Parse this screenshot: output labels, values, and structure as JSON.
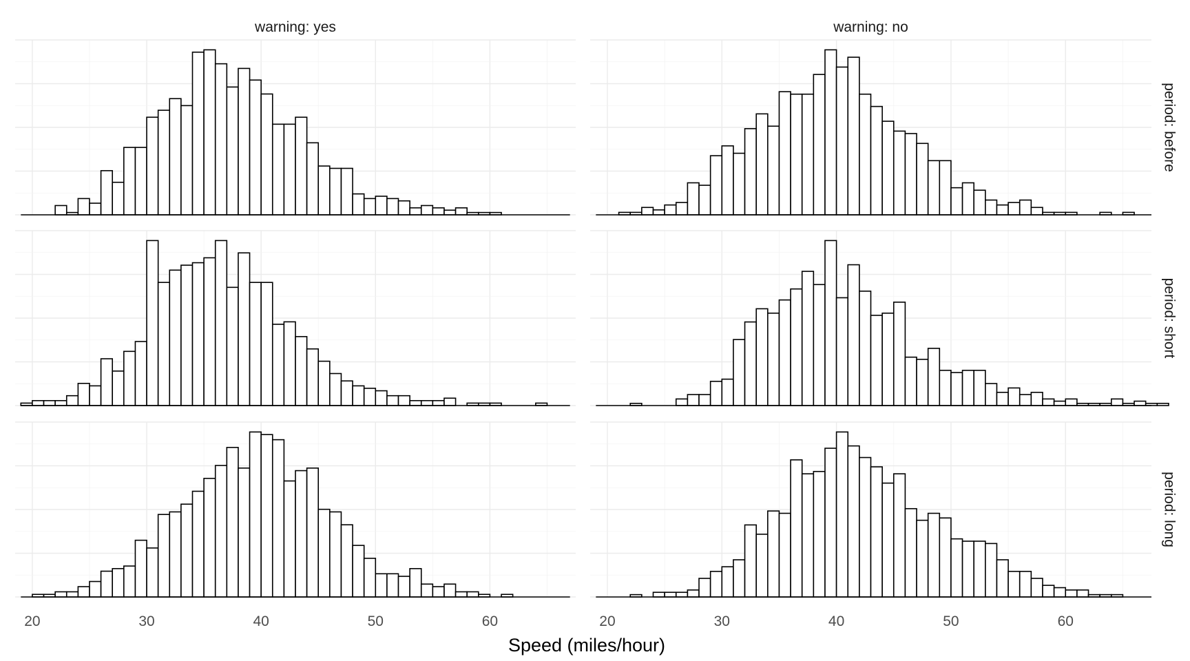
{
  "chart_data": {
    "type": "bar",
    "subtype": "histogram-facet-grid",
    "xlabel": "Speed (miles/hour)",
    "ylabel": "",
    "xlim": [
      18.5,
      67.5
    ],
    "x_ticks": [
      20,
      30,
      40,
      50,
      60
    ],
    "y_axis_labels_shown": false,
    "grid": true,
    "bin_width": 1,
    "bin_start": 19,
    "col_facets": [
      "warning: yes",
      "warning: no"
    ],
    "row_facets": [
      "period: before",
      "period: short",
      "period: long"
    ],
    "panels": [
      {
        "col": "warning: yes",
        "row": "period: before",
        "ymax": 71,
        "counts": [
          0,
          0,
          0,
          4,
          1,
          7,
          5,
          19,
          14,
          29,
          29,
          42,
          45,
          50,
          47,
          70,
          71,
          65,
          55,
          63,
          58,
          52,
          39,
          39,
          42,
          31,
          21,
          20,
          20,
          9,
          7,
          8,
          7,
          6,
          3,
          4,
          3,
          2,
          3,
          1,
          1,
          1,
          0,
          0,
          0,
          0,
          0,
          0
        ]
      },
      {
        "col": "warning: no",
        "row": "period: before",
        "ymax": 67,
        "counts": [
          0,
          0,
          1,
          1,
          3,
          2,
          4,
          5,
          13,
          12,
          24,
          28,
          25,
          35,
          41,
          36,
          50,
          49,
          49,
          57,
          67,
          60,
          64,
          49,
          44,
          38,
          34,
          33,
          29,
          22,
          22,
          11,
          13,
          10,
          6,
          4,
          5,
          6,
          3,
          1,
          1,
          1,
          0,
          0,
          1,
          0,
          1,
          0,
          0
        ]
      },
      {
        "col": "warning: yes",
        "row": "period: short",
        "ymax": 67,
        "counts": [
          1,
          2,
          2,
          2,
          4,
          9,
          8,
          19,
          14,
          22,
          26,
          67,
          50,
          55,
          57,
          58,
          60,
          67,
          48,
          62,
          50,
          50,
          33,
          34,
          28,
          23,
          18,
          13,
          10,
          8,
          7,
          6,
          4,
          4,
          2,
          2,
          2,
          3,
          0,
          1,
          1,
          1,
          0,
          0,
          0,
          1,
          0,
          0
        ]
      },
      {
        "col": "warning: no",
        "row": "period: short",
        "ymax": 75,
        "counts": [
          0,
          0,
          0,
          1,
          0,
          0,
          0,
          3,
          5,
          5,
          11,
          12,
          30,
          38,
          44,
          42,
          48,
          53,
          61,
          55,
          75,
          49,
          64,
          52,
          41,
          42,
          47,
          22,
          21,
          26,
          16,
          15,
          16,
          16,
          10,
          6,
          8,
          5,
          6,
          3,
          2,
          3,
          1,
          1,
          1,
          3,
          1,
          2,
          1,
          1
        ]
      },
      {
        "col": "warning: yes",
        "row": "period: long",
        "ymax": 64,
        "counts": [
          0,
          1,
          1,
          2,
          2,
          4,
          6,
          10,
          11,
          12,
          22,
          19,
          32,
          33,
          36,
          41,
          46,
          51,
          58,
          50,
          64,
          63,
          61,
          45,
          49,
          50,
          34,
          33,
          28,
          20,
          15,
          9,
          9,
          8,
          11,
          5,
          4,
          5,
          2,
          2,
          1,
          0,
          1,
          0,
          0,
          0,
          0,
          0
        ]
      },
      {
        "col": "warning: no",
        "row": "period: long",
        "ymax": 71,
        "counts": [
          0,
          0,
          0,
          1,
          0,
          2,
          2,
          2,
          3,
          8,
          11,
          13,
          16,
          31,
          27,
          37,
          36,
          59,
          53,
          54,
          64,
          71,
          65,
          60,
          56,
          49,
          53,
          38,
          33,
          36,
          34,
          25,
          24,
          24,
          23,
          16,
          11,
          11,
          8,
          5,
          4,
          3,
          3,
          1,
          1,
          1,
          0,
          0,
          0
        ]
      }
    ]
  }
}
